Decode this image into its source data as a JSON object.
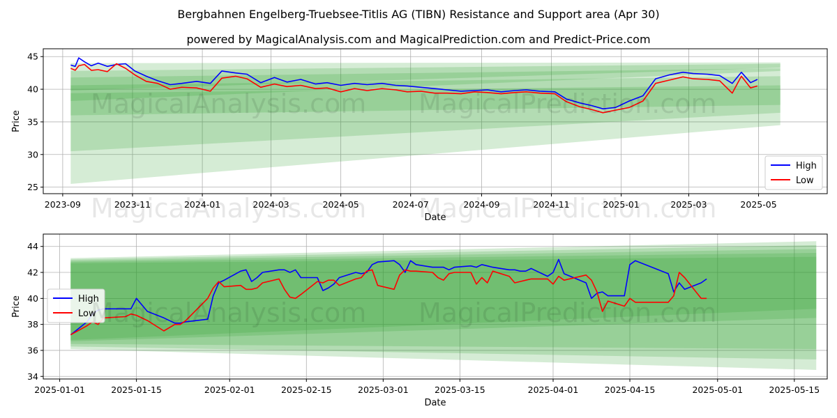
{
  "title": "Bergbahnen Engelberg-Truebsee-Titlis AG (TIBN) Resistance and Support area (Apr 30)",
  "subtitle": "powered by MagicalAnalysis.com and MagicalPrediction.com and Predict-Price.com",
  "watermarks": [
    "MagicalAnalysis.com",
    "MagicalPrediction.com"
  ],
  "colors": {
    "high": "#0000ff",
    "low": "#ff0000",
    "band": "#2e9e2e",
    "grid": "#b0b0b0"
  },
  "chart_data": [
    {
      "type": "line",
      "xlabel": "Date",
      "ylabel": "Price",
      "x_ticks": [
        "2023-09",
        "2023-11",
        "2024-01",
        "2024-03",
        "2024-05",
        "2024-07",
        "2024-09",
        "2024-11",
        "2025-01",
        "2025-03",
        "2025-05"
      ],
      "y_ticks": [
        25,
        30,
        35,
        40,
        45
      ],
      "xlim": [
        "2023-08-15",
        "2025-06-30"
      ],
      "ylim": [
        24,
        46.2
      ],
      "grid": true,
      "legend": "lower right",
      "series": [
        {
          "name": "High",
          "color": "#0000ff",
          "x": [
            "2023-09-08",
            "2023-09-12",
            "2023-09-15",
            "2023-09-20",
            "2023-09-26",
            "2023-10-02",
            "2023-10-10",
            "2023-10-18",
            "2023-10-26",
            "2023-11-03",
            "2023-11-13",
            "2023-11-23",
            "2023-12-04",
            "2023-12-14",
            "2023-12-27",
            "2024-01-08",
            "2024-01-18",
            "2024-01-30",
            "2024-02-09",
            "2024-02-21",
            "2024-03-04",
            "2024-03-15",
            "2024-03-27",
            "2024-04-09",
            "2024-04-19",
            "2024-05-01",
            "2024-05-13",
            "2024-05-24",
            "2024-06-06",
            "2024-06-18",
            "2024-06-28",
            "2024-07-10",
            "2024-07-22",
            "2024-08-02",
            "2024-08-14",
            "2024-08-26",
            "2024-09-06",
            "2024-09-18",
            "2024-09-30",
            "2024-10-10",
            "2024-10-22",
            "2024-11-04",
            "2024-11-14",
            "2024-11-26",
            "2024-12-06",
            "2024-12-16",
            "2024-12-27",
            "2025-01-08",
            "2025-01-20",
            "2025-01-31",
            "2025-02-12",
            "2025-02-24",
            "2025-03-05",
            "2025-03-17",
            "2025-03-28",
            "2025-04-08",
            "2025-04-16",
            "2025-04-24",
            "2025-04-30"
          ],
          "values": [
            43.7,
            43.5,
            44.8,
            44.2,
            43.6,
            44.0,
            43.5,
            43.8,
            43.9,
            42.8,
            42.0,
            41.3,
            40.7,
            40.9,
            41.2,
            40.9,
            42.8,
            42.5,
            42.3,
            41.0,
            41.8,
            41.1,
            41.5,
            40.8,
            41.0,
            40.6,
            40.9,
            40.7,
            40.9,
            40.6,
            40.5,
            40.3,
            40.1,
            39.9,
            39.7,
            39.8,
            39.9,
            39.6,
            39.8,
            39.9,
            39.7,
            39.6,
            38.5,
            37.9,
            37.5,
            37.0,
            37.2,
            38.2,
            39.0,
            41.6,
            42.2,
            42.6,
            42.4,
            42.3,
            42.1,
            40.9,
            42.6,
            41.0,
            41.5
          ]
        },
        {
          "name": "Low",
          "color": "#ff0000",
          "x": [
            "2023-09-08",
            "2023-09-12",
            "2023-09-15",
            "2023-09-20",
            "2023-09-26",
            "2023-10-02",
            "2023-10-10",
            "2023-10-18",
            "2023-10-26",
            "2023-11-03",
            "2023-11-13",
            "2023-11-23",
            "2023-12-04",
            "2023-12-14",
            "2023-12-27",
            "2024-01-08",
            "2024-01-18",
            "2024-01-30",
            "2024-02-09",
            "2024-02-21",
            "2024-03-04",
            "2024-03-15",
            "2024-03-27",
            "2024-04-09",
            "2024-04-19",
            "2024-05-01",
            "2024-05-13",
            "2024-05-24",
            "2024-06-06",
            "2024-06-18",
            "2024-06-28",
            "2024-07-10",
            "2024-07-22",
            "2024-08-02",
            "2024-08-14",
            "2024-08-26",
            "2024-09-06",
            "2024-09-18",
            "2024-09-30",
            "2024-10-10",
            "2024-10-22",
            "2024-11-04",
            "2024-11-14",
            "2024-11-26",
            "2024-12-06",
            "2024-12-16",
            "2024-12-27",
            "2025-01-08",
            "2025-01-20",
            "2025-01-31",
            "2025-02-12",
            "2025-02-24",
            "2025-03-05",
            "2025-03-17",
            "2025-03-28",
            "2025-04-08",
            "2025-04-16",
            "2025-04-24",
            "2025-04-30"
          ],
          "values": [
            43.2,
            42.9,
            43.6,
            43.8,
            42.9,
            43.0,
            42.7,
            43.9,
            43.2,
            42.2,
            41.2,
            40.9,
            40.0,
            40.3,
            40.2,
            39.7,
            41.7,
            42.0,
            41.6,
            40.3,
            40.8,
            40.4,
            40.6,
            40.1,
            40.2,
            39.6,
            40.1,
            39.8,
            40.1,
            39.9,
            39.6,
            39.7,
            39.4,
            39.4,
            39.3,
            39.6,
            39.5,
            39.3,
            39.5,
            39.6,
            39.4,
            39.3,
            38.1,
            37.3,
            36.9,
            36.4,
            36.8,
            37.2,
            38.2,
            40.9,
            41.4,
            41.9,
            41.6,
            41.5,
            41.3,
            39.4,
            42.0,
            40.2,
            40.5
          ]
        }
      ],
      "bands": [
        {
          "x": [
            "2023-09-08",
            "2025-05-20"
          ],
          "upper": [
            44.0,
            44.1
          ],
          "lower": [
            39.8,
            43.3
          ]
        },
        {
          "x": [
            "2023-09-08",
            "2025-05-20"
          ],
          "upper": [
            42.8,
            43.9
          ],
          "lower": [
            38.2,
            42.8
          ]
        },
        {
          "x": [
            "2023-09-08",
            "2025-05-20"
          ],
          "upper": [
            41.8,
            43.2
          ],
          "lower": [
            36.0,
            37.6
          ]
        },
        {
          "x": [
            "2023-09-08",
            "2025-05-20"
          ],
          "upper": [
            40.6,
            42.0
          ],
          "lower": [
            30.5,
            36.4
          ]
        },
        {
          "x": [
            "2023-09-08",
            "2025-05-20"
          ],
          "upper": [
            39.4,
            40.6
          ],
          "lower": [
            25.5,
            34.5
          ]
        }
      ]
    },
    {
      "type": "line",
      "xlabel": "Date",
      "ylabel": "Price",
      "x_ticks": [
        "2025-01-01",
        "2025-01-15",
        "2025-02-01",
        "2025-02-15",
        "2025-03-01",
        "2025-03-15",
        "2025-04-01",
        "2025-04-15",
        "2025-05-01",
        "2025-05-15"
      ],
      "y_ticks": [
        34,
        36,
        38,
        40,
        42,
        44
      ],
      "xlim": [
        "2024-12-29",
        "2025-05-21"
      ],
      "ylim": [
        33.8,
        44.95
      ],
      "grid": true,
      "legend": "center left",
      "series": [
        {
          "name": "High",
          "color": "#0000ff",
          "x": [
            "2025-01-03",
            "2025-01-06",
            "2025-01-07",
            "2025-01-08",
            "2025-01-09",
            "2025-01-13",
            "2025-01-14",
            "2025-01-15",
            "2025-01-17",
            "2025-01-20",
            "2025-01-22",
            "2025-01-23",
            "2025-01-24",
            "2025-01-28",
            "2025-01-29",
            "2025-01-30",
            "2025-01-31",
            "2025-02-03",
            "2025-02-04",
            "2025-02-05",
            "2025-02-06",
            "2025-02-07",
            "2025-02-10",
            "2025-02-11",
            "2025-02-12",
            "2025-02-13",
            "2025-02-14",
            "2025-02-17",
            "2025-02-18",
            "2025-02-19",
            "2025-02-20",
            "2025-02-21",
            "2025-02-24",
            "2025-02-25",
            "2025-02-26",
            "2025-02-27",
            "2025-02-28",
            "2025-03-03",
            "2025-03-04",
            "2025-03-05",
            "2025-03-06",
            "2025-03-07",
            "2025-03-10",
            "2025-03-11",
            "2025-03-12",
            "2025-03-13",
            "2025-03-14",
            "2025-03-17",
            "2025-03-18",
            "2025-03-19",
            "2025-03-20",
            "2025-03-21",
            "2025-03-24",
            "2025-03-25",
            "2025-03-26",
            "2025-03-27",
            "2025-03-28",
            "2025-03-31",
            "2025-04-01",
            "2025-04-02",
            "2025-04-03",
            "2025-04-07",
            "2025-04-08",
            "2025-04-09",
            "2025-04-10",
            "2025-04-11",
            "2025-04-14",
            "2025-04-15",
            "2025-04-16",
            "2025-04-22",
            "2025-04-23",
            "2025-04-24",
            "2025-04-25",
            "2025-04-28",
            "2025-04-29"
          ],
          "values": [
            37.2,
            38.2,
            38.8,
            39.1,
            39.2,
            39.2,
            39.2,
            40.0,
            39.0,
            38.5,
            38.1,
            38.1,
            38.2,
            38.4,
            40.2,
            41.2,
            41.4,
            42.1,
            42.2,
            41.3,
            41.6,
            42.0,
            42.2,
            42.2,
            42.0,
            42.2,
            41.6,
            41.6,
            40.6,
            40.8,
            41.1,
            41.6,
            42.0,
            41.9,
            42.0,
            42.6,
            42.8,
            42.9,
            42.6,
            42.0,
            42.9,
            42.6,
            42.4,
            42.4,
            42.4,
            42.2,
            42.4,
            42.5,
            42.4,
            42.6,
            42.5,
            42.4,
            42.2,
            42.2,
            42.1,
            42.1,
            42.3,
            41.7,
            42.0,
            43.0,
            41.9,
            41.2,
            40.0,
            40.4,
            40.5,
            40.2,
            40.2,
            42.6,
            42.9,
            41.9,
            40.5,
            41.2,
            40.7,
            41.2,
            41.5
          ]
        },
        {
          "name": "Low",
          "color": "#ff0000",
          "x": [
            "2025-01-03",
            "2025-01-06",
            "2025-01-07",
            "2025-01-08",
            "2025-01-09",
            "2025-01-13",
            "2025-01-14",
            "2025-01-15",
            "2025-01-17",
            "2025-01-20",
            "2025-01-22",
            "2025-01-23",
            "2025-01-24",
            "2025-01-28",
            "2025-01-29",
            "2025-01-30",
            "2025-01-31",
            "2025-02-03",
            "2025-02-04",
            "2025-02-05",
            "2025-02-06",
            "2025-02-07",
            "2025-02-10",
            "2025-02-11",
            "2025-02-12",
            "2025-02-13",
            "2025-02-14",
            "2025-02-17",
            "2025-02-18",
            "2025-02-19",
            "2025-02-20",
            "2025-02-21",
            "2025-02-24",
            "2025-02-25",
            "2025-02-26",
            "2025-02-27",
            "2025-02-28",
            "2025-03-03",
            "2025-03-04",
            "2025-03-05",
            "2025-03-06",
            "2025-03-07",
            "2025-03-10",
            "2025-03-11",
            "2025-03-12",
            "2025-03-13",
            "2025-03-14",
            "2025-03-17",
            "2025-03-18",
            "2025-03-19",
            "2025-03-20",
            "2025-03-21",
            "2025-03-24",
            "2025-03-25",
            "2025-03-26",
            "2025-03-27",
            "2025-03-28",
            "2025-03-31",
            "2025-04-01",
            "2025-04-02",
            "2025-04-03",
            "2025-04-07",
            "2025-04-08",
            "2025-04-09",
            "2025-04-10",
            "2025-04-11",
            "2025-04-14",
            "2025-04-15",
            "2025-04-16",
            "2025-04-22",
            "2025-04-23",
            "2025-04-24",
            "2025-04-25",
            "2025-04-28",
            "2025-04-29"
          ],
          "values": [
            37.2,
            37.9,
            38.2,
            38.0,
            38.5,
            38.6,
            38.8,
            38.7,
            38.3,
            37.5,
            38.0,
            38.0,
            38.3,
            40.0,
            40.8,
            41.3,
            40.9,
            41.0,
            40.7,
            40.7,
            40.8,
            41.2,
            41.5,
            40.7,
            40.1,
            40.0,
            40.3,
            41.3,
            41.2,
            41.4,
            41.4,
            41.0,
            41.5,
            41.6,
            42.1,
            42.2,
            41.0,
            40.7,
            41.8,
            42.2,
            42.1,
            42.1,
            42.0,
            41.6,
            41.4,
            41.9,
            42.0,
            42.0,
            41.1,
            41.6,
            41.2,
            42.1,
            41.7,
            41.2,
            41.3,
            41.4,
            41.5,
            41.5,
            41.1,
            41.7,
            41.4,
            41.8,
            41.4,
            40.5,
            39.0,
            39.8,
            39.4,
            40.0,
            39.7,
            39.7,
            40.2,
            42.0,
            41.6,
            40.0,
            40.0
          ]
        }
      ],
      "bands": [
        {
          "x": [
            "2025-01-03",
            "2025-05-19"
          ],
          "upper": [
            43.1,
            44.4
          ],
          "lower": [
            36.1,
            34.5
          ]
        },
        {
          "x": [
            "2025-01-03",
            "2025-05-19"
          ],
          "upper": [
            43.0,
            44.1
          ],
          "lower": [
            36.3,
            35.3
          ]
        },
        {
          "x": [
            "2025-01-03",
            "2025-05-19"
          ],
          "upper": [
            42.9,
            43.8
          ],
          "lower": [
            36.5,
            36.1
          ]
        },
        {
          "x": [
            "2025-01-03",
            "2025-05-19"
          ],
          "upper": [
            42.8,
            43.5
          ],
          "lower": [
            36.7,
            38.5
          ]
        },
        {
          "x": [
            "2025-01-03",
            "2025-05-19"
          ],
          "upper": [
            42.7,
            43.2
          ],
          "lower": [
            36.8,
            39.2
          ]
        }
      ]
    }
  ]
}
